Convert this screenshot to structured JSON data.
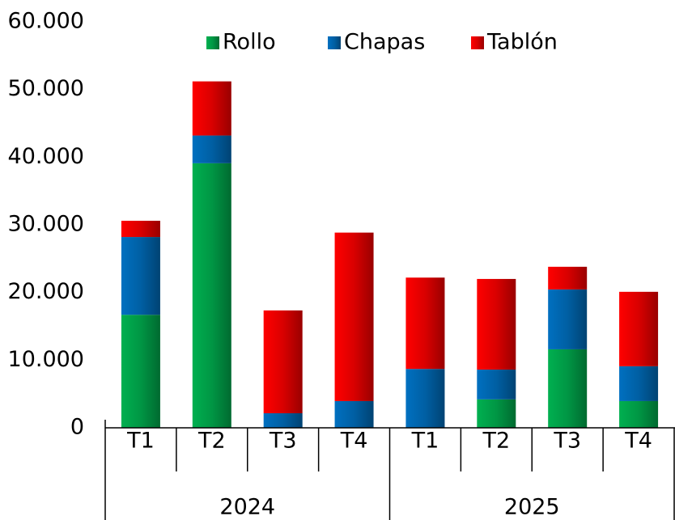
{
  "chart_data": {
    "type": "stacked_bar",
    "categories": [
      "T1",
      "T2",
      "T3",
      "T4",
      "T1",
      "T2",
      "T3",
      "T4"
    ],
    "groups": [
      "2024",
      "2025"
    ],
    "series": [
      {
        "name": "Rollo",
        "color": "#00b050",
        "values": [
          16700,
          39100,
          0,
          0,
          0,
          4200,
          11600,
          3950
        ]
      },
      {
        "name": "Chapas",
        "color": "#0070c0",
        "values": [
          11500,
          4100,
          2150,
          3950,
          8700,
          4400,
          8850,
          5150
        ]
      },
      {
        "name": "Tablón",
        "color": "#ff0000",
        "values": [
          2400,
          8000,
          15200,
          24900,
          13500,
          13400,
          3350,
          11000
        ]
      }
    ],
    "ylim": [
      0,
      60000
    ],
    "yticks": [
      0,
      {
        "value": 10000,
        "label": "10.000"
      },
      {
        "value": 20000,
        "label": "20.000"
      },
      {
        "value": 30000,
        "label": "30.000"
      },
      {
        "value": 40000,
        "label": "40.000"
      },
      {
        "value": 50000,
        "label": "50.000"
      },
      {
        "value": 60000,
        "label": "60.000"
      }
    ],
    "legend": "top"
  }
}
